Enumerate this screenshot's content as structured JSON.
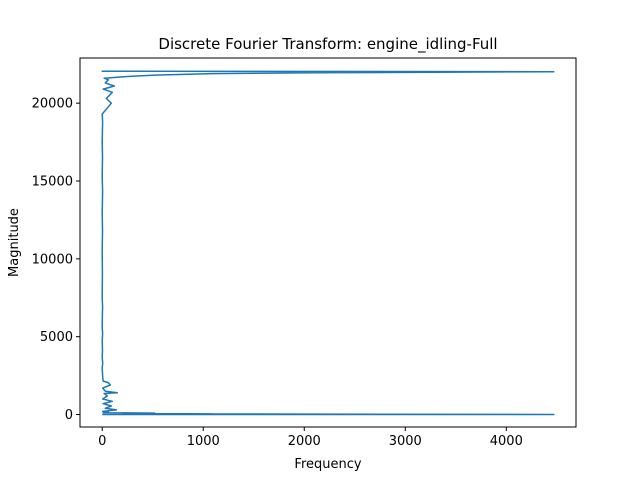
{
  "chart_data": {
    "type": "line",
    "title": "Discrete Fourier Transform: engine_idling-Full",
    "xlabel": "Frequency",
    "ylabel": "Magnitude",
    "xlim": [
      -220,
      4690
    ],
    "ylim": [
      -800,
      22900
    ],
    "x_ticks": [
      0,
      1000,
      2000,
      3000,
      4000
    ],
    "x_tick_labels": [
      "0",
      "1000",
      "2000",
      "3000",
      "4000"
    ],
    "y_ticks": [
      0,
      5000,
      10000,
      15000,
      20000
    ],
    "y_tick_labels": [
      "0",
      "5000",
      "10000",
      "15000",
      "20000"
    ],
    "grid": false,
    "line_color": "#1f77b4",
    "series": [
      {
        "values_description_note": "",
        "points": [
          [
            0,
            0
          ],
          [
            4470,
            0
          ],
          [
            2120,
            30
          ],
          [
            520,
            50
          ],
          [
            1090,
            40
          ],
          [
            210,
            70
          ],
          [
            520,
            90
          ],
          [
            10,
            120
          ],
          [
            60,
            160
          ],
          [
            5,
            200
          ],
          [
            140,
            300
          ],
          [
            30,
            400
          ],
          [
            90,
            550
          ],
          [
            10,
            700
          ],
          [
            100,
            850
          ],
          [
            5,
            1000
          ],
          [
            50,
            1200
          ],
          [
            20,
            1350
          ],
          [
            150,
            1400
          ],
          [
            30,
            1500
          ],
          [
            5,
            1700
          ],
          [
            80,
            1900
          ],
          [
            60,
            2050
          ],
          [
            10,
            2150
          ],
          [
            5,
            2400
          ],
          [
            0,
            3000
          ],
          [
            5,
            3300
          ],
          [
            0,
            3700
          ],
          [
            3,
            4100
          ],
          [
            0,
            4700
          ],
          [
            4,
            5200
          ],
          [
            0,
            5600
          ],
          [
            2,
            6500
          ],
          [
            4,
            6900
          ],
          [
            0,
            7500
          ],
          [
            2,
            9000
          ],
          [
            0,
            10500
          ],
          [
            3,
            11800
          ],
          [
            0,
            13000
          ],
          [
            4,
            14300
          ],
          [
            0,
            15300
          ],
          [
            3,
            16500
          ],
          [
            0,
            17500
          ],
          [
            4,
            18800
          ],
          [
            0,
            19300
          ],
          [
            90,
            20000
          ],
          [
            40,
            20300
          ],
          [
            100,
            20700
          ],
          [
            10,
            20900
          ],
          [
            120,
            21100
          ],
          [
            30,
            21300
          ],
          [
            60,
            21500
          ],
          [
            20,
            21600
          ],
          [
            210,
            21700
          ],
          [
            520,
            21800
          ],
          [
            1090,
            21900
          ],
          [
            2120,
            21950
          ],
          [
            4470,
            22020
          ],
          [
            0,
            22050
          ],
          [
            4470,
            22020
          ]
        ]
      }
    ]
  }
}
